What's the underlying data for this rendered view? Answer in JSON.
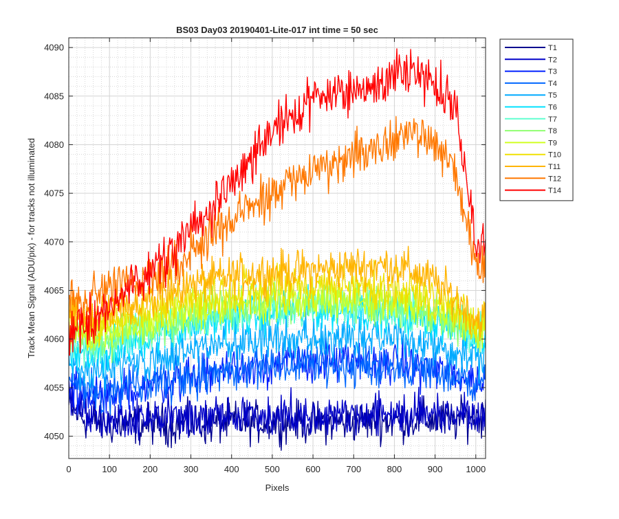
{
  "chart_data": {
    "type": "line",
    "title": "BS03 Day03 20190401-Lite-017 int time = 50 sec",
    "xlabel": "Pixels",
    "ylabel": "Track Mean Signal (ADU/pix) - for tracks not illuminated",
    "xlim": [
      0,
      1024
    ],
    "ylim": [
      4047.7,
      4091.0
    ],
    "x_ticks": [
      0,
      100,
      200,
      300,
      400,
      500,
      600,
      700,
      800,
      900,
      1000
    ],
    "y_ticks": [
      4050,
      4055,
      4060,
      4065,
      4070,
      4075,
      4080,
      4085,
      4090
    ],
    "grid": "major and minor (dotted)",
    "legend_position": "outside right, top",
    "x_sample_step": 50,
    "noise_amplitude": 1.6,
    "series": [
      {
        "name": "T1",
        "color": "#00008f",
        "values": [
          4053.0,
          4051.5,
          4051.2,
          4051.2,
          4051.3,
          4051.2,
          4051.3,
          4051.2,
          4051.5,
          4051.4,
          4051.5,
          4051.5,
          4051.4,
          4051.5,
          4051.5,
          4051.6,
          4051.6,
          4051.7,
          4051.7,
          4051.6,
          4052.0
        ]
      },
      {
        "name": "T2",
        "color": "#0000c8",
        "values": [
          4054.5,
          4052.0,
          4051.9,
          4051.8,
          4051.8,
          4051.9,
          4051.9,
          4052.0,
          4052.0,
          4052.1,
          4052.1,
          4052.2,
          4052.2,
          4052.2,
          4052.2,
          4052.3,
          4052.3,
          4052.3,
          4052.4,
          4052.4,
          4052.5
        ]
      },
      {
        "name": "T3",
        "color": "#0020ff",
        "values": [
          4055.0,
          4054.0,
          4054.4,
          4054.8,
          4055.3,
          4055.8,
          4056.2,
          4056.6,
          4057.0,
          4057.2,
          4057.4,
          4057.5,
          4057.6,
          4057.7,
          4057.6,
          4057.5,
          4057.5,
          4057.2,
          4056.8,
          4056.3,
          4055.7
        ]
      },
      {
        "name": "T4",
        "color": "#0066ff",
        "values": [
          4055.8,
          4054.8,
          4055.0,
          4055.3,
          4055.6,
          4055.9,
          4056.2,
          4056.5,
          4056.7,
          4056.9,
          4057.1,
          4057.2,
          4057.3,
          4057.3,
          4057.2,
          4057.2,
          4057.0,
          4056.8,
          4056.5,
          4056.0,
          4055.5
        ]
      },
      {
        "name": "T5",
        "color": "#00aaff",
        "values": [
          4057.5,
          4056.5,
          4057.0,
          4057.4,
          4057.9,
          4058.4,
          4058.8,
          4059.2,
          4059.5,
          4059.8,
          4060.0,
          4060.2,
          4060.2,
          4060.3,
          4060.2,
          4060.2,
          4060.0,
          4059.7,
          4059.3,
          4058.8,
          4058.0
        ]
      },
      {
        "name": "T6",
        "color": "#00e0ff",
        "values": [
          4059.0,
          4058.5,
          4059.0,
          4059.6,
          4060.2,
          4060.8,
          4061.4,
          4061.8,
          4062.2,
          4062.5,
          4062.7,
          4062.9,
          4063.0,
          4063.0,
          4062.9,
          4062.8,
          4062.6,
          4062.3,
          4061.8,
          4061.2,
          4060.5
        ]
      },
      {
        "name": "T7",
        "color": "#60ffd0",
        "values": [
          4060.0,
          4059.2,
          4059.7,
          4060.3,
          4060.9,
          4061.4,
          4061.9,
          4062.3,
          4062.6,
          4062.9,
          4063.1,
          4063.2,
          4063.3,
          4063.4,
          4063.3,
          4063.2,
          4063.0,
          4062.6,
          4062.1,
          4061.5,
          4060.8
        ]
      },
      {
        "name": "T8",
        "color": "#90ff70",
        "values": [
          4060.5,
          4059.8,
          4060.3,
          4060.9,
          4061.5,
          4062.0,
          4062.5,
          4062.9,
          4063.2,
          4063.4,
          4063.6,
          4063.7,
          4063.8,
          4063.8,
          4063.7,
          4063.6,
          4063.4,
          4063.0,
          4062.5,
          4061.9,
          4061.0
        ]
      },
      {
        "name": "T9",
        "color": "#d0ff20",
        "values": [
          4061.0,
          4060.3,
          4060.8,
          4061.4,
          4062.0,
          4062.5,
          4063.0,
          4063.4,
          4063.7,
          4063.9,
          4064.1,
          4064.2,
          4064.3,
          4064.3,
          4064.2,
          4064.1,
          4063.9,
          4063.5,
          4063.0,
          4062.3,
          4061.0
        ]
      },
      {
        "name": "T10",
        "color": "#f0e000",
        "values": [
          4062.0,
          4061.0,
          4061.6,
          4062.3,
          4063.0,
          4063.6,
          4064.1,
          4064.5,
          4064.9,
          4065.2,
          4065.4,
          4065.5,
          4065.6,
          4065.6,
          4065.5,
          4065.4,
          4065.1,
          4064.7,
          4064.1,
          4063.3,
          4061.5
        ]
      },
      {
        "name": "T11",
        "color": "#ffb400",
        "values": [
          4063.5,
          4062.0,
          4062.7,
          4063.5,
          4064.3,
          4064.9,
          4065.5,
          4066.0,
          4066.4,
          4066.7,
          4066.9,
          4067.0,
          4067.1,
          4067.2,
          4067.4,
          4067.6,
          4067.5,
          4066.9,
          4065.8,
          4064.2,
          4062.0
        ]
      },
      {
        "name": "T12",
        "color": "#ff7800",
        "values": [
          4064.5,
          4064.0,
          4064.8,
          4065.6,
          4066.6,
          4067.7,
          4069.0,
          4070.5,
          4072.2,
          4073.6,
          4074.9,
          4076.2,
          4077.2,
          4078.2,
          4079.0,
          4079.8,
          4080.8,
          4081.3,
          4080.5,
          4077.0,
          4068.0
        ]
      },
      {
        "name": "T14",
        "color": "#ff0000",
        "values": [
          4061.0,
          4062.0,
          4063.5,
          4065.2,
          4067.0,
          4068.9,
          4071.0,
          4073.4,
          4076.0,
          4078.4,
          4081.0,
          4083.0,
          4084.5,
          4085.3,
          4085.7,
          4086.0,
          4086.6,
          4087.0,
          4086.5,
          4083.5,
          4070.0
        ]
      }
    ]
  }
}
